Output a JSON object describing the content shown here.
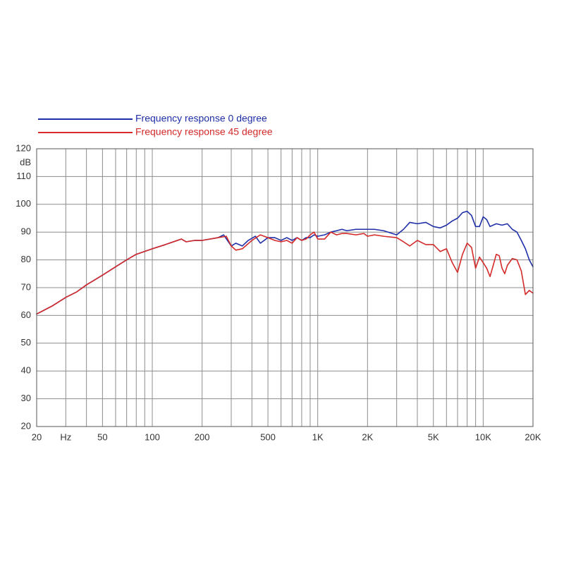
{
  "chart_data": {
    "type": "line",
    "x_scale": "log",
    "xlim": [
      20,
      20000
    ],
    "ylim": [
      20,
      120
    ],
    "ylabel": "dB",
    "xlabel": "Hz",
    "grid": true,
    "legend_position": "top-left",
    "x_ticks": [
      {
        "v": 20,
        "label": "20"
      },
      {
        "v": 30,
        "label": "Hz"
      },
      {
        "v": 50,
        "label": "50"
      },
      {
        "v": 100,
        "label": "100"
      },
      {
        "v": 200,
        "label": "200"
      },
      {
        "v": 500,
        "label": "500"
      },
      {
        "v": 1000,
        "label": "1K"
      },
      {
        "v": 2000,
        "label": "2K"
      },
      {
        "v": 5000,
        "label": "5K"
      },
      {
        "v": 10000,
        "label": "10K"
      },
      {
        "v": 20000,
        "label": "20K"
      }
    ],
    "y_ticks": [
      {
        "v": 120,
        "label": "120"
      },
      {
        "v": 110,
        "label": "110"
      },
      {
        "v": 100,
        "label": "100"
      },
      {
        "v": 90,
        "label": "90"
      },
      {
        "v": 80,
        "label": "80"
      },
      {
        "v": 70,
        "label": "70"
      },
      {
        "v": 60,
        "label": "60"
      },
      {
        "v": 50,
        "label": "50"
      },
      {
        "v": 40,
        "label": "40"
      },
      {
        "v": 30,
        "label": "30"
      },
      {
        "v": 20,
        "label": "20"
      }
    ],
    "x_gridlines": [
      20,
      30,
      40,
      50,
      60,
      70,
      80,
      90,
      100,
      200,
      300,
      400,
      500,
      600,
      700,
      800,
      900,
      1000,
      2000,
      3000,
      4000,
      5000,
      6000,
      7000,
      8000,
      9000,
      10000,
      20000
    ],
    "series": [
      {
        "name": "Frequency response 0 degree",
        "color": "#1f2fa8",
        "points": [
          [
            20,
            60.5
          ],
          [
            25,
            63.5
          ],
          [
            30,
            66.5
          ],
          [
            35,
            68.5
          ],
          [
            40,
            71
          ],
          [
            50,
            74.5
          ],
          [
            60,
            77.5
          ],
          [
            70,
            80
          ],
          [
            80,
            82
          ],
          [
            100,
            84
          ],
          [
            120,
            85.5
          ],
          [
            150,
            87.5
          ],
          [
            160,
            86.5
          ],
          [
            180,
            87
          ],
          [
            200,
            87
          ],
          [
            250,
            88
          ],
          [
            270,
            89
          ],
          [
            300,
            85
          ],
          [
            320,
            86
          ],
          [
            350,
            85
          ],
          [
            380,
            87
          ],
          [
            420,
            88.5
          ],
          [
            450,
            86
          ],
          [
            500,
            88
          ],
          [
            550,
            88
          ],
          [
            600,
            87
          ],
          [
            650,
            88
          ],
          [
            700,
            87
          ],
          [
            750,
            88
          ],
          [
            800,
            87
          ],
          [
            850,
            88
          ],
          [
            900,
            88
          ],
          [
            950,
            89
          ],
          [
            1000,
            88.5
          ],
          [
            1100,
            89
          ],
          [
            1200,
            90
          ],
          [
            1300,
            90.5
          ],
          [
            1400,
            91
          ],
          [
            1500,
            90.5
          ],
          [
            1700,
            91
          ],
          [
            1900,
            91
          ],
          [
            2000,
            91
          ],
          [
            2200,
            91
          ],
          [
            2500,
            90.5
          ],
          [
            3000,
            89
          ],
          [
            3300,
            91
          ],
          [
            3600,
            93.5
          ],
          [
            4000,
            93
          ],
          [
            4500,
            93.5
          ],
          [
            5000,
            92
          ],
          [
            5500,
            91.5
          ],
          [
            6000,
            92.5
          ],
          [
            6500,
            94
          ],
          [
            7000,
            95
          ],
          [
            7500,
            97
          ],
          [
            8000,
            97.5
          ],
          [
            8500,
            96
          ],
          [
            9000,
            92
          ],
          [
            9500,
            92
          ],
          [
            10000,
            95.5
          ],
          [
            10500,
            94.5
          ],
          [
            11000,
            92
          ],
          [
            12000,
            93
          ],
          [
            13000,
            92.5
          ],
          [
            14000,
            93
          ],
          [
            15000,
            91
          ],
          [
            16000,
            90
          ],
          [
            17000,
            87
          ],
          [
            18000,
            84
          ],
          [
            19000,
            80
          ],
          [
            20000,
            77.5
          ]
        ]
      },
      {
        "name": "Frequency response 45 degree",
        "color": "#d42a2a",
        "points": [
          [
            20,
            60.5
          ],
          [
            25,
            63.5
          ],
          [
            30,
            66.5
          ],
          [
            35,
            68.5
          ],
          [
            40,
            71
          ],
          [
            50,
            74.5
          ],
          [
            60,
            77.5
          ],
          [
            70,
            80
          ],
          [
            80,
            82
          ],
          [
            100,
            84
          ],
          [
            120,
            85.5
          ],
          [
            150,
            87.5
          ],
          [
            160,
            86.5
          ],
          [
            180,
            87
          ],
          [
            200,
            87
          ],
          [
            250,
            88
          ],
          [
            280,
            88.5
          ],
          [
            300,
            85
          ],
          [
            320,
            83.5
          ],
          [
            350,
            84
          ],
          [
            400,
            87
          ],
          [
            450,
            89
          ],
          [
            500,
            88
          ],
          [
            550,
            87
          ],
          [
            600,
            86.5
          ],
          [
            650,
            87
          ],
          [
            700,
            86
          ],
          [
            750,
            88
          ],
          [
            800,
            87
          ],
          [
            850,
            87.5
          ],
          [
            900,
            89
          ],
          [
            950,
            90
          ],
          [
            1000,
            87.5
          ],
          [
            1100,
            87.5
          ],
          [
            1200,
            90
          ],
          [
            1300,
            89
          ],
          [
            1400,
            89.5
          ],
          [
            1500,
            89.5
          ],
          [
            1700,
            89
          ],
          [
            1900,
            89.5
          ],
          [
            2000,
            88.5
          ],
          [
            2200,
            89
          ],
          [
            2500,
            88.5
          ],
          [
            3000,
            88
          ],
          [
            3300,
            86.5
          ],
          [
            3600,
            85
          ],
          [
            4000,
            87
          ],
          [
            4500,
            85.5
          ],
          [
            5000,
            85.5
          ],
          [
            5500,
            83
          ],
          [
            6000,
            84
          ],
          [
            6500,
            79
          ],
          [
            7000,
            75.5
          ],
          [
            7500,
            82
          ],
          [
            8000,
            86
          ],
          [
            8500,
            84.5
          ],
          [
            9000,
            77
          ],
          [
            9500,
            81
          ],
          [
            10000,
            79
          ],
          [
            10500,
            77
          ],
          [
            11000,
            74
          ],
          [
            11500,
            78
          ],
          [
            12000,
            82
          ],
          [
            12500,
            81.5
          ],
          [
            13000,
            77
          ],
          [
            13500,
            75
          ],
          [
            14000,
            78
          ],
          [
            15000,
            80.5
          ],
          [
            16000,
            80
          ],
          [
            17000,
            76
          ],
          [
            18000,
            67.5
          ],
          [
            19000,
            69
          ],
          [
            20000,
            68
          ]
        ]
      }
    ]
  }
}
